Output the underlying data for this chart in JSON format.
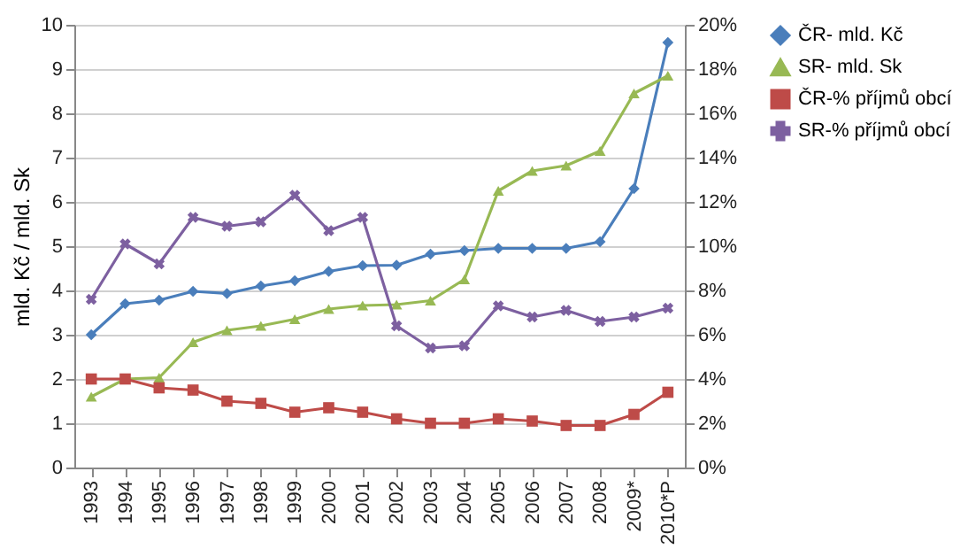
{
  "chart_data": {
    "type": "line",
    "ylabel": "mld. Kč / mld. Sk",
    "categories": [
      "1993",
      "1994",
      "1995",
      "1996",
      "1997",
      "1998",
      "1999",
      "2000",
      "2001",
      "2002",
      "2003",
      "2004",
      "2005",
      "2006",
      "2007",
      "2008",
      "2009*",
      "2010*P"
    ],
    "ylim": [
      0,
      10
    ],
    "yticks": [
      0,
      1,
      2,
      3,
      4,
      5,
      6,
      7,
      8,
      9,
      10
    ],
    "y2lim": [
      0,
      20
    ],
    "y2ticks": [
      {
        "value": 0,
        "label": "0%"
      },
      {
        "value": 2,
        "label": "2%"
      },
      {
        "value": 4,
        "label": "4%"
      },
      {
        "value": 6,
        "label": "6%"
      },
      {
        "value": 8,
        "label": "8%"
      },
      {
        "value": 10,
        "label": "10%"
      },
      {
        "value": 12,
        "label": "12%"
      },
      {
        "value": 14,
        "label": "14%"
      },
      {
        "value": 16,
        "label": "16%"
      },
      {
        "value": 18,
        "label": "18%"
      },
      {
        "value": 20,
        "label": "20%"
      }
    ],
    "grid": "y",
    "legend": "right",
    "series": [
      {
        "name": "ČR- mld. Kč",
        "color": "#4a7ebb",
        "marker": "diamond",
        "values": [
          3.0,
          3.7,
          3.78,
          3.98,
          3.93,
          4.1,
          4.22,
          4.43,
          4.56,
          4.57,
          4.82,
          4.9,
          4.95,
          4.95,
          4.95,
          5.1,
          6.3,
          9.6
        ]
      },
      {
        "name": "SR- mld. Sk",
        "color": "#98b954",
        "marker": "triangle",
        "values": [
          1.6,
          2.0,
          2.03,
          2.83,
          3.1,
          3.2,
          3.35,
          3.58,
          3.66,
          3.68,
          3.77,
          4.25,
          6.25,
          6.7,
          6.82,
          7.15,
          8.45,
          8.85
        ]
      },
      {
        "name": "ČR-% příjmů obcí",
        "color": "#be4b48",
        "marker": "square",
        "axis": "y2",
        "values": [
          4.0,
          4.0,
          3.6,
          3.5,
          3.0,
          2.9,
          2.5,
          2.7,
          2.5,
          2.2,
          2.0,
          2.0,
          2.2,
          2.1,
          1.9,
          1.9,
          2.4,
          3.4
        ]
      },
      {
        "name": "SR-% příjmů obcí",
        "color": "#7d60a0",
        "marker": "cross",
        "axis": "y2",
        "values": [
          7.6,
          10.1,
          9.2,
          11.3,
          10.9,
          11.1,
          12.3,
          10.7,
          11.3,
          6.4,
          5.4,
          5.5,
          7.3,
          6.8,
          7.1,
          6.6,
          6.8,
          7.2
        ]
      }
    ]
  }
}
